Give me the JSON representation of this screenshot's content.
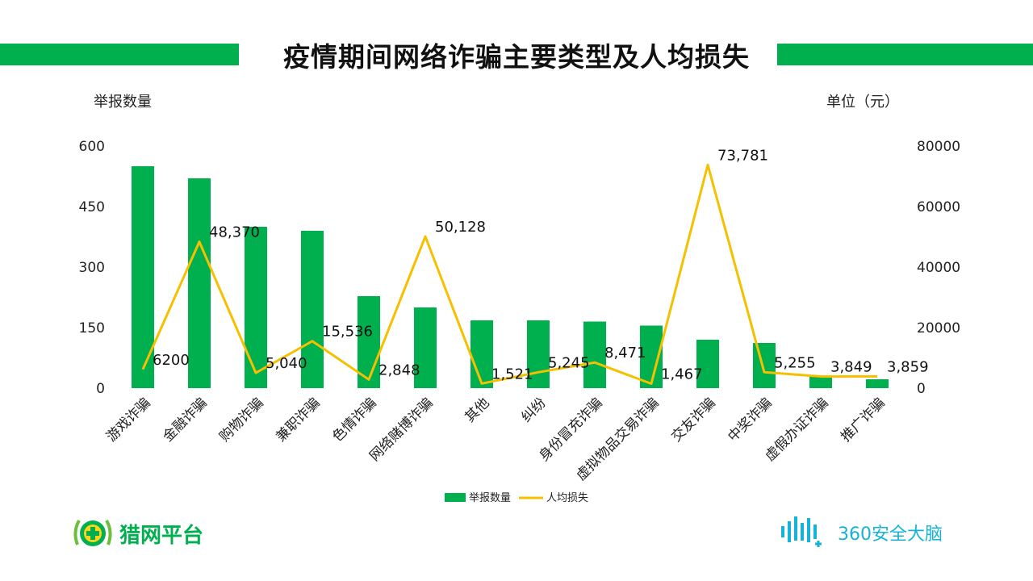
{
  "title": "疫情期间网络诈骗主要类型及人均损失",
  "left_axis_title": "举报数量",
  "right_axis_title": "单位（元）",
  "colors": {
    "bar": "#00b04f",
    "line": "#f5c000",
    "strip": "#00b04f"
  },
  "chart_data": {
    "type": "bar",
    "categories": [
      "游戏诈骗",
      "金融诈骗",
      "购物诈骗",
      "兼职诈骗",
      "色情诈骗",
      "网络赌博诈骗",
      "其他",
      "纠纷",
      "身份冒充诈骗",
      "虚拟物品交易诈骗",
      "交友诈骗",
      "中奖诈骗",
      "虚假办证诈骗",
      "推广诈骗"
    ],
    "series": [
      {
        "name": "举报数量",
        "type": "bar",
        "axis": "left",
        "values": [
          550,
          520,
          400,
          390,
          228,
          200,
          168,
          168,
          165,
          155,
          120,
          112,
          28,
          22
        ]
      },
      {
        "name": "人均损失",
        "type": "line",
        "axis": "right",
        "values": [
          6200,
          48370,
          5040,
          15536,
          2848,
          50128,
          1521,
          5245,
          8471,
          1467,
          73781,
          5255,
          3849,
          3859
        ],
        "labels": [
          "6200",
          "48,370",
          "5,040",
          "15,536",
          "2,848",
          "50,128",
          "1,521",
          "5,245",
          "8,471",
          "1,467",
          "73,781",
          "5,255",
          "3,849",
          "3,859"
        ]
      }
    ],
    "y_left": {
      "range": [
        0,
        600
      ],
      "ticks": [
        "0",
        "150",
        "300",
        "450",
        "600"
      ]
    },
    "y_right": {
      "range": [
        0,
        80000
      ],
      "ticks": [
        "0",
        "20000",
        "40000",
        "60000",
        "80000"
      ]
    },
    "legend": {
      "position": "bottom",
      "items": [
        "举报数量",
        "人均损失"
      ]
    },
    "grid": false
  },
  "logos": {
    "left_text": "猎网平台",
    "right_text": "360安全大脑"
  }
}
